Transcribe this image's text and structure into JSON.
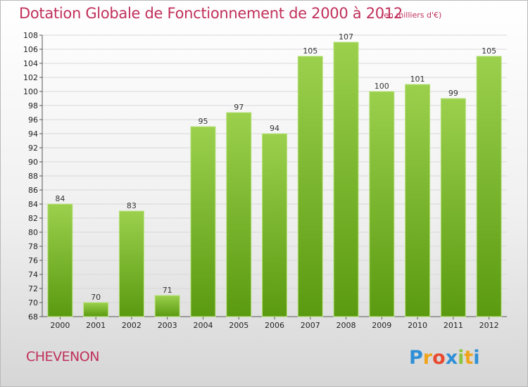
{
  "header": {
    "title": "Dotation Globale de Fonctionnement de 2000 à 2012",
    "subtitle": "(en milliers d'€)"
  },
  "footer": {
    "commune": "CHEVENON",
    "logo_text": "Proxiti"
  },
  "colors": {
    "title": "#c0305a",
    "bar_top": "#9bd04d",
    "bar_bottom": "#5a9a10",
    "grid": "#d8d8d8"
  },
  "chart_data": {
    "type": "bar",
    "title": "Dotation Globale de Fonctionnement de 2000 à 2012",
    "subtitle": "(en milliers d'€)",
    "xlabel": "",
    "ylabel": "",
    "categories": [
      "2000",
      "2001",
      "2002",
      "2003",
      "2004",
      "2005",
      "2006",
      "2007",
      "2008",
      "2009",
      "2010",
      "2011",
      "2012"
    ],
    "values": [
      84,
      70,
      83,
      71,
      95,
      97,
      94,
      105,
      107,
      100,
      101,
      99,
      105
    ],
    "ylim": [
      68,
      108
    ],
    "ytick_step": 2,
    "grid": true,
    "legend": "none",
    "data_labels": true
  }
}
